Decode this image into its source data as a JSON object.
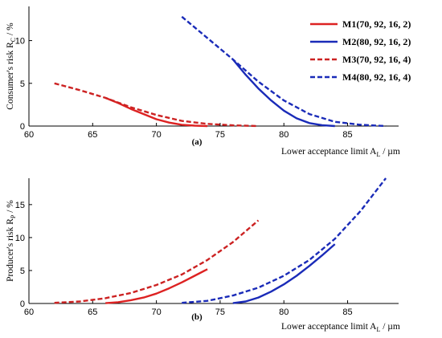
{
  "chart_data": [
    {
      "type": "line",
      "panel_label": "(a)",
      "xlabel": "Lower acceptance limit A",
      "xlabel_sub": "L",
      "xlabel_unit": " / µm",
      "ylabel": "Consumer's  risk R",
      "ylabel_sub": "C",
      "ylabel_unit": " / %",
      "xlim": [
        60,
        89
      ],
      "ylim": [
        0,
        14
      ],
      "xticks": [
        60,
        65,
        70,
        75,
        80,
        85
      ],
      "yticks": [
        0,
        5,
        10
      ],
      "legend_placement": "top-right",
      "series": [
        {
          "name": "M1(70, 92, 16, 2)",
          "color": "#dd2222",
          "style": "solid",
          "x": [
            66,
            67,
            68,
            69,
            70,
            71,
            72,
            73,
            74
          ],
          "y": [
            3.3,
            2.7,
            2.0,
            1.4,
            0.8,
            0.4,
            0.15,
            0.05,
            0.0
          ]
        },
        {
          "name": "M2(80, 92, 16, 2)",
          "color": "#1a2bb8",
          "style": "solid",
          "x": [
            76,
            77,
            78,
            79,
            80,
            81,
            82,
            83,
            84
          ],
          "y": [
            7.8,
            6.0,
            4.4,
            3.0,
            1.8,
            0.9,
            0.35,
            0.1,
            0.0
          ]
        },
        {
          "name": "M3(70, 92, 16, 4)",
          "color": "#cc2222",
          "style": "dashed",
          "x": [
            62,
            64,
            66,
            68,
            70,
            72,
            74,
            76,
            78
          ],
          "y": [
            5.0,
            4.2,
            3.3,
            2.2,
            1.3,
            0.6,
            0.25,
            0.08,
            0.0
          ]
        },
        {
          "name": "M4(80, 92, 16, 4)",
          "color": "#1a2bb8",
          "style": "dashed",
          "x": [
            72,
            74,
            76,
            78,
            80,
            82,
            84,
            86,
            88
          ],
          "y": [
            12.8,
            10.3,
            7.8,
            5.2,
            3.0,
            1.4,
            0.5,
            0.15,
            0.0
          ]
        }
      ]
    },
    {
      "type": "line",
      "panel_label": "(b)",
      "xlabel": "Lower acceptance limit A",
      "xlabel_sub": "L",
      "xlabel_unit": " / µm",
      "ylabel": "Producer's risk R",
      "ylabel_sub": "P",
      "ylabel_unit": " / %",
      "xlim": [
        60,
        89
      ],
      "ylim": [
        0,
        19
      ],
      "xticks": [
        60,
        65,
        70,
        75,
        80,
        85
      ],
      "yticks": [
        0,
        5,
        10,
        15
      ],
      "series": [
        {
          "name": "M1(70, 92, 16, 2)",
          "color": "#dd2222",
          "style": "solid",
          "x": [
            66,
            67,
            68,
            69,
            70,
            71,
            72,
            73,
            74
          ],
          "y": [
            0.05,
            0.2,
            0.5,
            0.9,
            1.5,
            2.3,
            3.2,
            4.2,
            5.2
          ]
        },
        {
          "name": "M2(80, 92, 16, 2)",
          "color": "#1a2bb8",
          "style": "solid",
          "x": [
            76,
            77,
            78,
            79,
            80,
            81,
            82,
            83,
            84
          ],
          "y": [
            0.05,
            0.3,
            0.9,
            1.8,
            2.9,
            4.2,
            5.7,
            7.3,
            9.0
          ]
        },
        {
          "name": "M3(70, 92, 16, 4)",
          "color": "#cc2222",
          "style": "dashed",
          "x": [
            62,
            64,
            66,
            68,
            70,
            72,
            74,
            76,
            78
          ],
          "y": [
            0.1,
            0.3,
            0.8,
            1.6,
            2.8,
            4.4,
            6.6,
            9.3,
            12.6
          ]
        },
        {
          "name": "M4(80, 92, 16, 4)",
          "color": "#1a2bb8",
          "style": "dashed",
          "x": [
            72,
            74,
            76,
            78,
            80,
            82,
            84,
            86,
            88
          ],
          "y": [
            0.1,
            0.4,
            1.2,
            2.4,
            4.2,
            6.6,
            9.8,
            14.0,
            19.0
          ]
        }
      ]
    }
  ]
}
